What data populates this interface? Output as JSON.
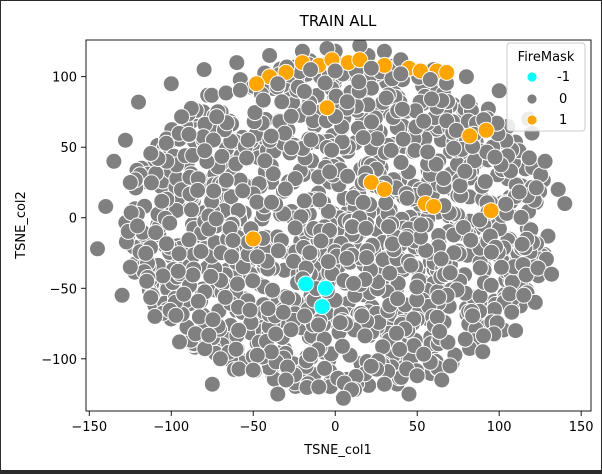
{
  "chart_data": {
    "type": "scatter",
    "title": "TRAIN ALL",
    "xlabel": "TSNE_col1",
    "ylabel": "TSNE_col2",
    "xlim": [
      -152,
      156
    ],
    "ylim": [
      -137,
      126
    ],
    "xticks": [
      -150,
      -100,
      -50,
      0,
      50,
      100,
      150
    ],
    "xtick_labels": [
      "−150",
      "−100",
      "−50",
      "0",
      "50",
      "100",
      "150"
    ],
    "yticks": [
      -100,
      -50,
      0,
      50,
      100
    ],
    "ytick_labels": [
      "−100",
      "−50",
      "0",
      "50",
      "100"
    ],
    "grid": false,
    "legend": {
      "title": "FireMask",
      "placement": "top-right",
      "entries": [
        {
          "label": "-1",
          "color": "#00ffff"
        },
        {
          "label": "0",
          "color": "#808080"
        },
        {
          "label": "1",
          "color": "#ffa500"
        }
      ]
    },
    "series": [
      {
        "name": "0",
        "color": "#808080",
        "cloud": {
          "center": [
            2,
            -5
          ],
          "radius_x": 133,
          "radius_y": 120,
          "approx_points": 1400
        },
        "points": [
          [
            -145,
            -22
          ],
          [
            -140,
            8
          ],
          [
            -135,
            40
          ],
          [
            -128,
            55
          ],
          [
            -125,
            -35
          ],
          [
            -120,
            82
          ],
          [
            -110,
            -70
          ],
          [
            -100,
            95
          ],
          [
            -95,
            -88
          ],
          [
            -80,
            105
          ],
          [
            -70,
            -100
          ],
          [
            -60,
            110
          ],
          [
            -50,
            -108
          ],
          [
            -40,
            115
          ],
          [
            -30,
            -115
          ],
          [
            -20,
            118
          ],
          [
            -10,
            -120
          ],
          [
            0,
            118
          ],
          [
            10,
            -122
          ],
          [
            20,
            115
          ],
          [
            30,
            -118
          ],
          [
            40,
            112
          ],
          [
            50,
            -112
          ],
          [
            60,
            105
          ],
          [
            70,
            -105
          ],
          [
            80,
            100
          ],
          [
            90,
            -95
          ],
          [
            100,
            90
          ],
          [
            110,
            -80
          ],
          [
            118,
            70
          ],
          [
            122,
            -60
          ],
          [
            128,
            40
          ],
          [
            132,
            -40
          ],
          [
            136,
            20
          ],
          [
            140,
            10
          ],
          [
            -130,
            -55
          ],
          [
            -125,
            25
          ],
          [
            -115,
            -45
          ],
          [
            115,
            -55
          ],
          [
            120,
            60
          ],
          [
            -75,
            -118
          ],
          [
            65,
            -115
          ],
          [
            -35,
            -125
          ],
          [
            5,
            -128
          ],
          [
            45,
            -125
          ],
          [
            15,
            122
          ],
          [
            -5,
            120
          ],
          [
            30,
            118
          ]
        ]
      },
      {
        "name": "1",
        "color": "#ffa500",
        "points": [
          [
            -20,
            110
          ],
          [
            -30,
            103
          ],
          [
            -40,
            100
          ],
          [
            -10,
            108
          ],
          [
            -2,
            112
          ],
          [
            8,
            110
          ],
          [
            15,
            112
          ],
          [
            30,
            108
          ],
          [
            45,
            106
          ],
          [
            52,
            104
          ],
          [
            62,
            104
          ],
          [
            68,
            103
          ],
          [
            -48,
            95
          ],
          [
            -5,
            78
          ],
          [
            82,
            58
          ],
          [
            92,
            62
          ],
          [
            55,
            10
          ],
          [
            60,
            8
          ],
          [
            95,
            5
          ],
          [
            -50,
            -15
          ],
          [
            22,
            25
          ],
          [
            30,
            20
          ]
        ]
      },
      {
        "name": "-1",
        "color": "#00ffff",
        "points": [
          [
            -18,
            -47
          ],
          [
            -8,
            -63
          ],
          [
            -6,
            -50
          ]
        ]
      }
    ]
  }
}
